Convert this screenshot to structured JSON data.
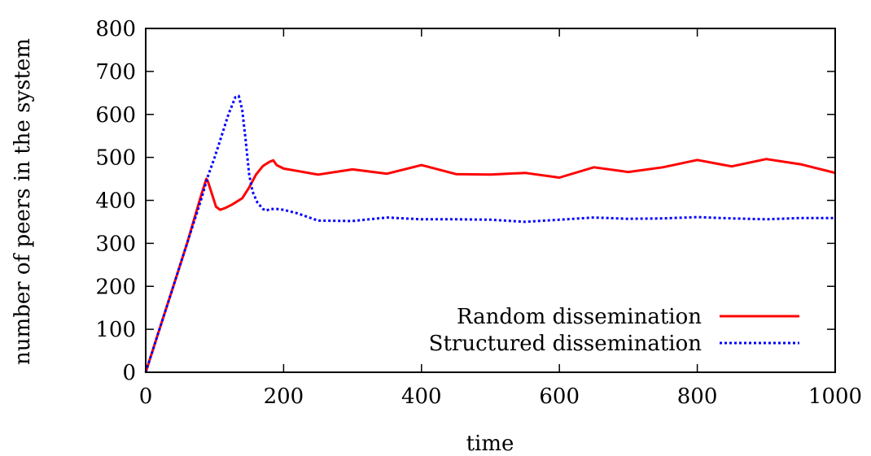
{
  "chart_data": {
    "type": "line",
    "title": "",
    "xlabel": "time",
    "ylabel": "number of peers in the system",
    "xlim": [
      0,
      1000
    ],
    "ylim": [
      0,
      800
    ],
    "xticks": [
      0,
      200,
      400,
      600,
      800,
      1000
    ],
    "yticks": [
      0,
      100,
      200,
      300,
      400,
      500,
      600,
      700,
      800
    ],
    "grid": false,
    "legend_position": "bottom-right",
    "series": [
      {
        "name": "Random dissemination",
        "color": "#ff0000",
        "style": "solid",
        "points": [
          [
            0,
            0
          ],
          [
            20,
            100
          ],
          [
            40,
            200
          ],
          [
            60,
            300
          ],
          [
            80,
            410
          ],
          [
            88,
            450
          ],
          [
            90,
            445
          ],
          [
            95,
            420
          ],
          [
            102,
            385
          ],
          [
            108,
            378
          ],
          [
            115,
            382
          ],
          [
            125,
            390
          ],
          [
            140,
            405
          ],
          [
            150,
            430
          ],
          [
            160,
            460
          ],
          [
            170,
            480
          ],
          [
            180,
            490
          ],
          [
            185,
            493
          ],
          [
            190,
            482
          ],
          [
            200,
            474
          ],
          [
            250,
            460
          ],
          [
            300,
            472
          ],
          [
            350,
            462
          ],
          [
            400,
            482
          ],
          [
            450,
            461
          ],
          [
            500,
            460
          ],
          [
            550,
            464
          ],
          [
            600,
            453
          ],
          [
            650,
            477
          ],
          [
            700,
            466
          ],
          [
            750,
            477
          ],
          [
            800,
            494
          ],
          [
            850,
            479
          ],
          [
            900,
            496
          ],
          [
            950,
            484
          ],
          [
            1000,
            464
          ]
        ]
      },
      {
        "name": "Structured dissemination",
        "color": "#0000ff",
        "style": "dotted",
        "points": [
          [
            0,
            0
          ],
          [
            20,
            100
          ],
          [
            40,
            200
          ],
          [
            60,
            300
          ],
          [
            80,
            400
          ],
          [
            90,
            455
          ],
          [
            100,
            500
          ],
          [
            110,
            550
          ],
          [
            120,
            600
          ],
          [
            130,
            640
          ],
          [
            135,
            643
          ],
          [
            140,
            610
          ],
          [
            145,
            540
          ],
          [
            150,
            460
          ],
          [
            155,
            420
          ],
          [
            162,
            395
          ],
          [
            170,
            380
          ],
          [
            175,
            376
          ],
          [
            180,
            380
          ],
          [
            190,
            380
          ],
          [
            200,
            378
          ],
          [
            220,
            370
          ],
          [
            250,
            353
          ],
          [
            300,
            352
          ],
          [
            350,
            360
          ],
          [
            400,
            356
          ],
          [
            450,
            356
          ],
          [
            500,
            355
          ],
          [
            550,
            350
          ],
          [
            600,
            355
          ],
          [
            650,
            360
          ],
          [
            700,
            357
          ],
          [
            750,
            358
          ],
          [
            800,
            361
          ],
          [
            850,
            358
          ],
          [
            900,
            356
          ],
          [
            950,
            359
          ],
          [
            1000,
            359
          ]
        ]
      }
    ]
  }
}
